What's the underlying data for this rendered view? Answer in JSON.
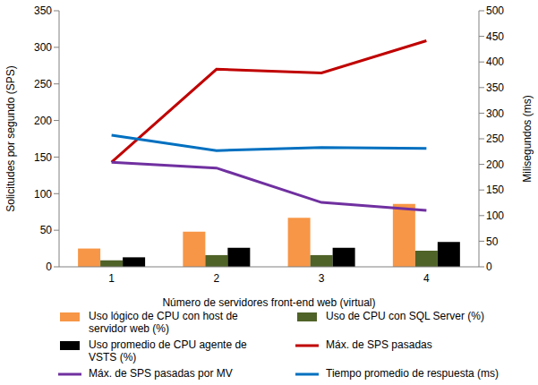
{
  "chart_data": {
    "type": "bar",
    "categories": [
      "1",
      "2",
      "3",
      "4"
    ],
    "x_label": "Número de servidores front-end web (virtual)",
    "y_label": "Solicitudes por segundo (SPS)",
    "y2_label": "Milisegundos (ms)",
    "ylim": [
      0,
      350
    ],
    "yticks": [
      0,
      50,
      100,
      150,
      200,
      250,
      300,
      350
    ],
    "y2lim": [
      0,
      500
    ],
    "y2ticks": [
      0,
      50,
      100,
      150,
      200,
      250,
      300,
      350,
      400,
      450,
      500
    ],
    "grid": false,
    "legend": "bottom",
    "series": [
      {
        "name": "Uso lógico de CPU con host de servidor web (%)",
        "type": "bar",
        "color": "#f79646",
        "values": [
          25,
          48,
          67,
          86
        ]
      },
      {
        "name": "Uso de CPU con SQL Server (%)",
        "type": "bar",
        "color": "#4f6228",
        "values": [
          9,
          16,
          16,
          22
        ]
      },
      {
        "name": "Uso promedio de CPU agente de VSTS (%)",
        "type": "bar",
        "color": "#000000",
        "values": [
          13,
          26,
          26,
          34
        ]
      },
      {
        "name": "Máx. de SPS pasadas",
        "type": "line",
        "color": "#c00000",
        "marker": "none",
        "line_style": "solid",
        "values": [
          143,
          270,
          265,
          309
        ]
      },
      {
        "name": "Máx. de SPS pasadas por MV",
        "type": "line",
        "color": "#7030a0",
        "marker": "none",
        "line_style": "solid",
        "values": [
          143,
          135,
          88,
          77
        ]
      },
      {
        "name": "Tiempo promedio de respuesta (ms)",
        "type": "line",
        "color": "#0070c0",
        "marker": "none",
        "line_style": "solid",
        "axis": "y2",
        "values": [
          257,
          227,
          233,
          231
        ]
      }
    ]
  }
}
